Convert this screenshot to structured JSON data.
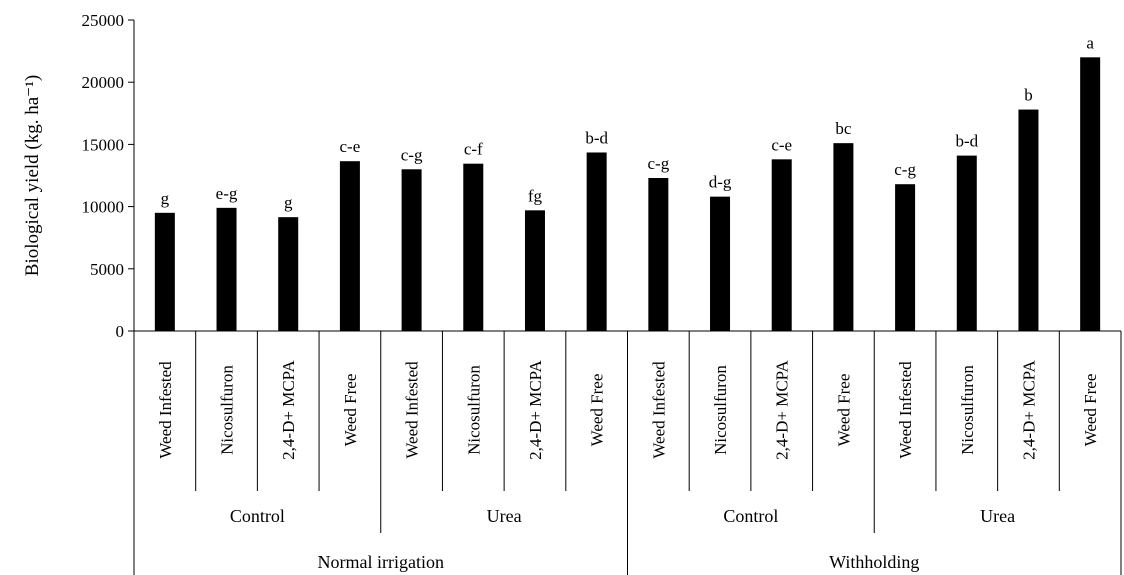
{
  "chart_data": {
    "type": "bar",
    "title": "",
    "xlabel": "",
    "ylabel": "Biological yield (kg. ha⁻¹)",
    "ylim": [
      0,
      25000
    ],
    "yticks": [
      0,
      5000,
      10000,
      15000,
      20000,
      25000
    ],
    "grid": false,
    "bar_color": "#000000",
    "categories": [
      "Weed Infested",
      "Nicosulfuron",
      "2,4-D+ MCPA",
      "Weed Free",
      "Weed Infested",
      "Nicosulfuron",
      "2,4-D+ MCPA",
      "Weed Free",
      "Weed Infested",
      "Nicosulfuron",
      "2,4-D+ MCPA",
      "Weed Free",
      "Weed Infested",
      "Nicosulfuron",
      "2,4-D+ MCPA",
      "Weed Free"
    ],
    "values": [
      9500,
      9900,
      9150,
      13650,
      13000,
      13450,
      9700,
      14350,
      12300,
      10800,
      13800,
      15100,
      11800,
      14100,
      17800,
      22000
    ],
    "data_labels": [
      "g",
      "e-g",
      "g",
      "c-e",
      "c-g",
      "c-f",
      "fg",
      "b-d",
      "c-g",
      "d-g",
      "c-e",
      "bc",
      "c-g",
      "b-d",
      "b",
      "a"
    ],
    "level2_groups": [
      {
        "label": "Control",
        "start": 0,
        "end": 3
      },
      {
        "label": "Urea",
        "start": 4,
        "end": 7
      },
      {
        "label": "Control",
        "start": 8,
        "end": 11
      },
      {
        "label": "Urea",
        "start": 12,
        "end": 15
      }
    ],
    "level3_groups": [
      {
        "label": "Normal irrigation",
        "start": 0,
        "end": 7
      },
      {
        "label": "Withholding",
        "start": 8,
        "end": 15
      }
    ]
  }
}
